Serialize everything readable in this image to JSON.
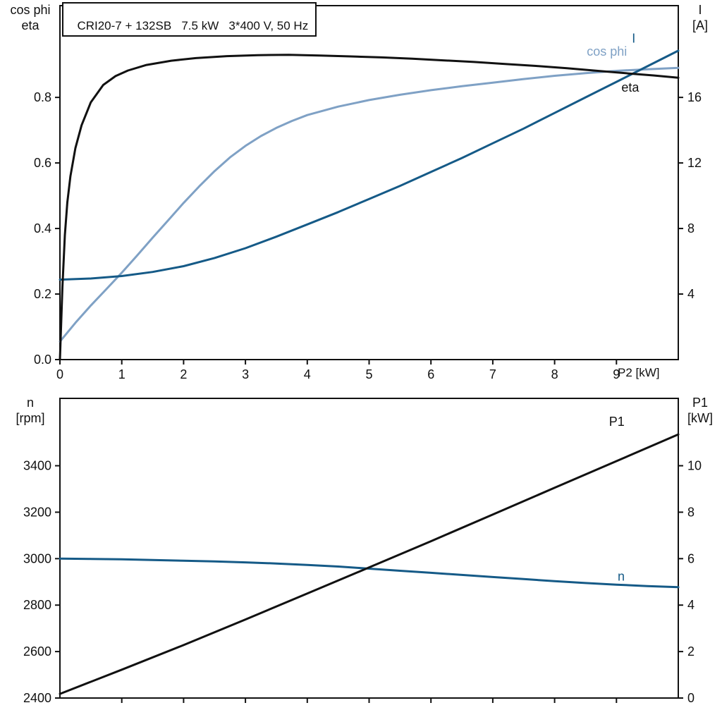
{
  "title": "CRI20-7 + 132SB   7.5 kW   3*400 V, 50 Hz",
  "colors": {
    "frame": "#111111",
    "black": "#111111",
    "dark_blue": "#155a87",
    "light_blue": "#7fa1c5"
  },
  "chart_data": [
    {
      "type": "line",
      "title": "CRI20-7 + 132SB   7.5 kW   3*400 V, 50 Hz",
      "x": {
        "label": "P2 [kW]",
        "lim": [
          0,
          10
        ],
        "ticks": [
          0,
          1,
          2,
          3,
          4,
          5,
          6,
          7,
          8,
          9
        ],
        "tick_labels": [
          "0",
          "1",
          "2",
          "3",
          "4",
          "5",
          "6",
          "7",
          "8",
          "9"
        ]
      },
      "left_axis": {
        "label_lines": [
          "cos phi",
          "eta"
        ],
        "lim": [
          0,
          1.08
        ],
        "ticks": [
          0,
          0.2,
          0.4,
          0.6,
          0.8
        ],
        "tick_labels": [
          "0.0",
          "0.2",
          "0.4",
          "0.6",
          "0.8"
        ]
      },
      "right_axis": {
        "label_lines": [
          "I",
          "[A]"
        ],
        "lim": [
          0,
          21.6
        ],
        "ticks": [
          4,
          8,
          12,
          16
        ],
        "tick_labels": [
          "4",
          "8",
          "12",
          "16"
        ]
      },
      "series": [
        {
          "name": "cos phi",
          "color": "#7fa1c5",
          "axis": "left",
          "label_pos": [
            8.52,
            0.927
          ],
          "points": [
            [
              0,
              0.055
            ],
            [
              0.25,
              0.112
            ],
            [
              0.5,
              0.165
            ],
            [
              0.75,
              0.215
            ],
            [
              1,
              0.265
            ],
            [
              1.25,
              0.318
            ],
            [
              1.5,
              0.372
            ],
            [
              1.75,
              0.425
            ],
            [
              2,
              0.478
            ],
            [
              2.25,
              0.528
            ],
            [
              2.5,
              0.575
            ],
            [
              2.75,
              0.617
            ],
            [
              3,
              0.652
            ],
            [
              3.25,
              0.682
            ],
            [
              3.5,
              0.707
            ],
            [
              3.75,
              0.728
            ],
            [
              4,
              0.746
            ],
            [
              4.5,
              0.772
            ],
            [
              5,
              0.792
            ],
            [
              5.5,
              0.808
            ],
            [
              6,
              0.822
            ],
            [
              6.5,
              0.834
            ],
            [
              7,
              0.845
            ],
            [
              7.5,
              0.856
            ],
            [
              8,
              0.866
            ],
            [
              8.5,
              0.874
            ],
            [
              9,
              0.881
            ],
            [
              9.5,
              0.886
            ],
            [
              10,
              0.89
            ]
          ]
        },
        {
          "name": "I",
          "color": "#155a87",
          "axis": "right",
          "label_pos": [
            9.25,
            19.35
          ],
          "points": [
            [
              0,
              4.88
            ],
            [
              0.5,
              4.95
            ],
            [
              1,
              5.1
            ],
            [
              1.5,
              5.35
            ],
            [
              2,
              5.7
            ],
            [
              2.5,
              6.2
            ],
            [
              3,
              6.8
            ],
            [
              3.5,
              7.5
            ],
            [
              4,
              8.25
            ],
            [
              4.5,
              9.0
            ],
            [
              5,
              9.8
            ],
            [
              5.5,
              10.6
            ],
            [
              6,
              11.45
            ],
            [
              6.5,
              12.3
            ],
            [
              7,
              13.2
            ],
            [
              7.5,
              14.1
            ],
            [
              8,
              15.05
            ],
            [
              8.5,
              16.0
            ],
            [
              9,
              16.95
            ],
            [
              9.5,
              17.9
            ],
            [
              10,
              18.85
            ]
          ]
        },
        {
          "name": "eta",
          "color": "#111111",
          "axis": "left",
          "label_pos": [
            9.08,
            0.818
          ],
          "points": [
            [
              0,
              0
            ],
            [
              0.04,
              0.22
            ],
            [
              0.08,
              0.38
            ],
            [
              0.12,
              0.48
            ],
            [
              0.17,
              0.56
            ],
            [
              0.25,
              0.645
            ],
            [
              0.35,
              0.715
            ],
            [
              0.5,
              0.785
            ],
            [
              0.7,
              0.838
            ],
            [
              0.9,
              0.865
            ],
            [
              1.1,
              0.882
            ],
            [
              1.4,
              0.899
            ],
            [
              1.8,
              0.912
            ],
            [
              2.2,
              0.92
            ],
            [
              2.7,
              0.926
            ],
            [
              3.2,
              0.929
            ],
            [
              3.7,
              0.93
            ],
            [
              4.2,
              0.928
            ],
            [
              4.7,
              0.925
            ],
            [
              5.2,
              0.922
            ],
            [
              5.7,
              0.918
            ],
            [
              6.2,
              0.913
            ],
            [
              6.7,
              0.908
            ],
            [
              7.2,
              0.902
            ],
            [
              7.7,
              0.896
            ],
            [
              8.2,
              0.889
            ],
            [
              8.7,
              0.881
            ],
            [
              9.2,
              0.873
            ],
            [
              9.6,
              0.867
            ],
            [
              10,
              0.86
            ]
          ]
        }
      ]
    },
    {
      "type": "line",
      "x": {
        "label": "",
        "lim": [
          0,
          10
        ],
        "ticks": [
          1,
          2,
          3,
          4,
          5,
          6,
          7,
          8,
          9
        ],
        "tick_labels": []
      },
      "left_axis": {
        "label_lines": [
          "n",
          "[rpm]"
        ],
        "lim": [
          2400,
          3690
        ],
        "ticks": [
          2400,
          2600,
          2800,
          3000,
          3200,
          3400
        ],
        "tick_labels": [
          "2400",
          "2600",
          "2800",
          "3000",
          "3200",
          "3400"
        ]
      },
      "right_axis": {
        "label_lines": [
          "P1",
          "[kW]"
        ],
        "lim": [
          0,
          12.9
        ],
        "ticks": [
          0,
          2,
          4,
          6,
          8,
          10
        ],
        "tick_labels": [
          "0",
          "2",
          "4",
          "6",
          "8",
          "10"
        ]
      },
      "series": [
        {
          "name": "n",
          "color": "#155a87",
          "axis": "left",
          "label_pos": [
            9.02,
            2906
          ],
          "points": [
            [
              0,
              3000
            ],
            [
              0.5,
              2999
            ],
            [
              1,
              2997
            ],
            [
              1.5,
              2994
            ],
            [
              2,
              2991
            ],
            [
              2.5,
              2988
            ],
            [
              3,
              2984
            ],
            [
              3.5,
              2979
            ],
            [
              4,
              2973
            ],
            [
              4.5,
              2966
            ],
            [
              5,
              2957
            ],
            [
              5.5,
              2948
            ],
            [
              6,
              2939
            ],
            [
              6.5,
              2930
            ],
            [
              7,
              2921
            ],
            [
              7.5,
              2912
            ],
            [
              8,
              2903
            ],
            [
              8.5,
              2895
            ],
            [
              9,
              2888
            ],
            [
              9.5,
              2882
            ],
            [
              10,
              2877
            ]
          ]
        },
        {
          "name": "P1",
          "color": "#111111",
          "axis": "right",
          "label_pos": [
            8.88,
            11.72
          ],
          "points": [
            [
              0,
              0.18
            ],
            [
              1,
              1.22
            ],
            [
              2,
              2.28
            ],
            [
              3,
              3.38
            ],
            [
              4,
              4.5
            ],
            [
              5,
              5.62
            ],
            [
              6,
              6.75
            ],
            [
              7,
              7.9
            ],
            [
              8,
              9.05
            ],
            [
              9,
              10.2
            ],
            [
              10,
              11.35
            ]
          ]
        }
      ]
    }
  ]
}
